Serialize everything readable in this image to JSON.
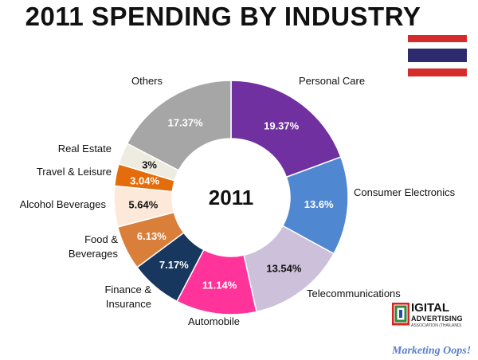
{
  "title": "2011 SPENDING BY INDUSTRY",
  "chart_data": {
    "type": "pie",
    "variant": "donut",
    "center_label": "2011",
    "slices": [
      {
        "label": "Personal Care",
        "value": 19.37,
        "display": "19.37%",
        "color": "#7030a0"
      },
      {
        "label": "Consumer Electronics",
        "value": 13.6,
        "display": "13.6%",
        "color": "#4f88d0"
      },
      {
        "label": "Telecommunications",
        "value": 13.54,
        "display": "13.54%",
        "color": "#ccc0da"
      },
      {
        "label": "Automobile",
        "value": 11.14,
        "display": "11.14%",
        "color": "#ff3399"
      },
      {
        "label": "Finance & Insurance",
        "value": 7.17,
        "display": "7.17%",
        "color": "#17375e"
      },
      {
        "label": "Food & Beverages",
        "value": 6.13,
        "display": "6.13%",
        "color": "#d97f3a"
      },
      {
        "label": "Alcohol Beverages",
        "value": 5.64,
        "display": "5.64%",
        "color": "#fde9d9"
      },
      {
        "label": "Travel & Leisure",
        "value": 3.04,
        "display": "3.04%",
        "color": "#e46c0a"
      },
      {
        "label": "Real Estate",
        "value": 3.0,
        "display": "3%",
        "color": "#eeece1"
      },
      {
        "label": "Others",
        "value": 17.37,
        "display": "17.37%",
        "color": "#a6a6a6"
      }
    ]
  },
  "logo": {
    "word": "IGITAL",
    "advertising": "ADVERTISING",
    "association": "ASSOCIATION (THAILAND)",
    "watermark": "Marketing Oops!"
  },
  "flag": {
    "name": "thailand-flag",
    "colors": [
      "#d62b2b",
      "#ffffff",
      "#2d2a6e"
    ]
  }
}
